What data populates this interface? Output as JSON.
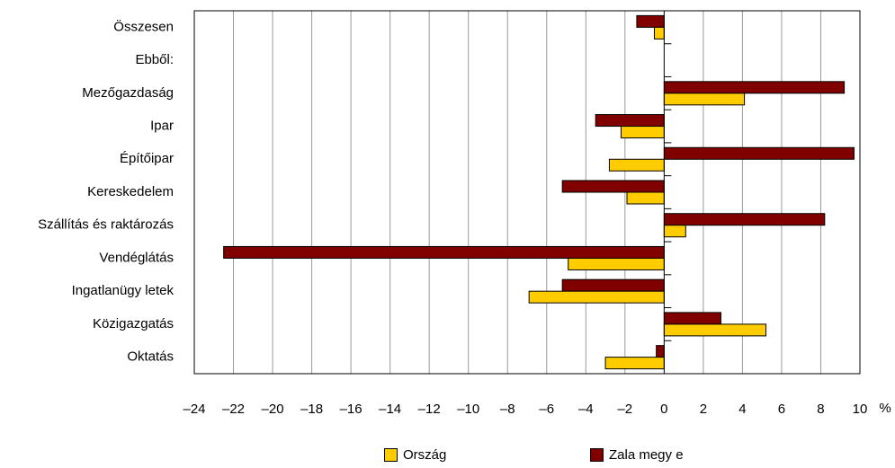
{
  "chart_data": {
    "type": "bar",
    "orientation": "horizontal",
    "categories": [
      "Összesen",
      "Ebből:",
      "Mezőgazdaság",
      "Ipar",
      "Építőipar",
      "Kereskedelem",
      "Szállítás és raktározás",
      "Vendéglátás",
      "Ingatlanügy letek",
      "Közigazgatás",
      "Oktatás"
    ],
    "series": [
      {
        "name": "Zala megy e",
        "color": "#800000",
        "values": [
          -1.4,
          null,
          9.2,
          -3.5,
          9.7,
          -5.2,
          8.2,
          -22.5,
          -5.2,
          2.9,
          -0.4
        ]
      },
      {
        "name": "Ország",
        "color": "#ffcc00",
        "values": [
          -0.5,
          null,
          4.1,
          -2.2,
          -2.8,
          -1.9,
          1.1,
          -4.9,
          -6.9,
          5.2,
          -3
        ]
      }
    ],
    "xlim": [
      -24,
      10
    ],
    "xticks": [
      -24,
      -22,
      -20,
      -18,
      -16,
      -14,
      -12,
      -10,
      -8,
      -6,
      -4,
      -2,
      0,
      2,
      4,
      6,
      8,
      10
    ],
    "xunit": "%",
    "grid": "vertical",
    "legend_position": "bottom"
  }
}
